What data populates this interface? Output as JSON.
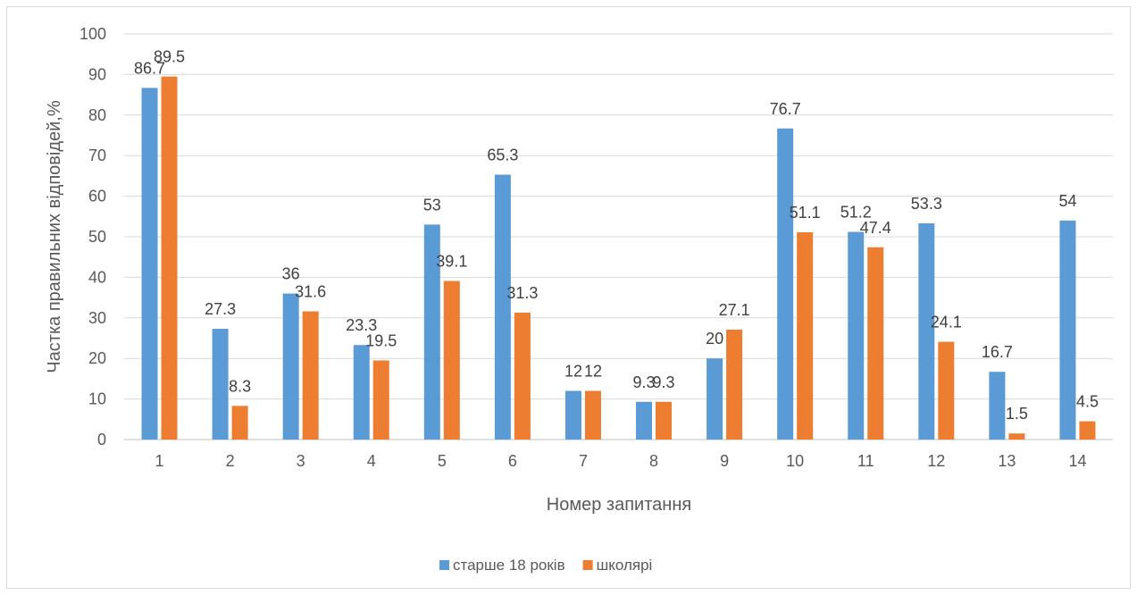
{
  "chart_data": {
    "type": "bar",
    "categories": [
      "1",
      "2",
      "3",
      "4",
      "5",
      "6",
      "7",
      "8",
      "9",
      "10",
      "11",
      "12",
      "13",
      "14"
    ],
    "series": [
      {
        "name": "старше 18 років",
        "color": "#5b9bd5",
        "values": [
          86.7,
          27.3,
          36,
          23.3,
          53,
          65.3,
          12,
          9.3,
          20,
          76.7,
          51.2,
          53.3,
          16.7,
          54
        ]
      },
      {
        "name": "школярі",
        "color": "#ed7d31",
        "values": [
          89.5,
          8.3,
          31.6,
          19.5,
          39.1,
          31.3,
          12,
          9.3,
          27.1,
          51.1,
          47.4,
          24.1,
          1.5,
          4.5
        ]
      }
    ],
    "xlabel": "Номер запитання",
    "ylabel": "Частка правильних відповідей,%",
    "ylim": [
      0,
      100
    ],
    "yticks": [
      0,
      10,
      20,
      30,
      40,
      50,
      60,
      70,
      80,
      90,
      100
    ],
    "grid": true,
    "legend": "bottom"
  }
}
